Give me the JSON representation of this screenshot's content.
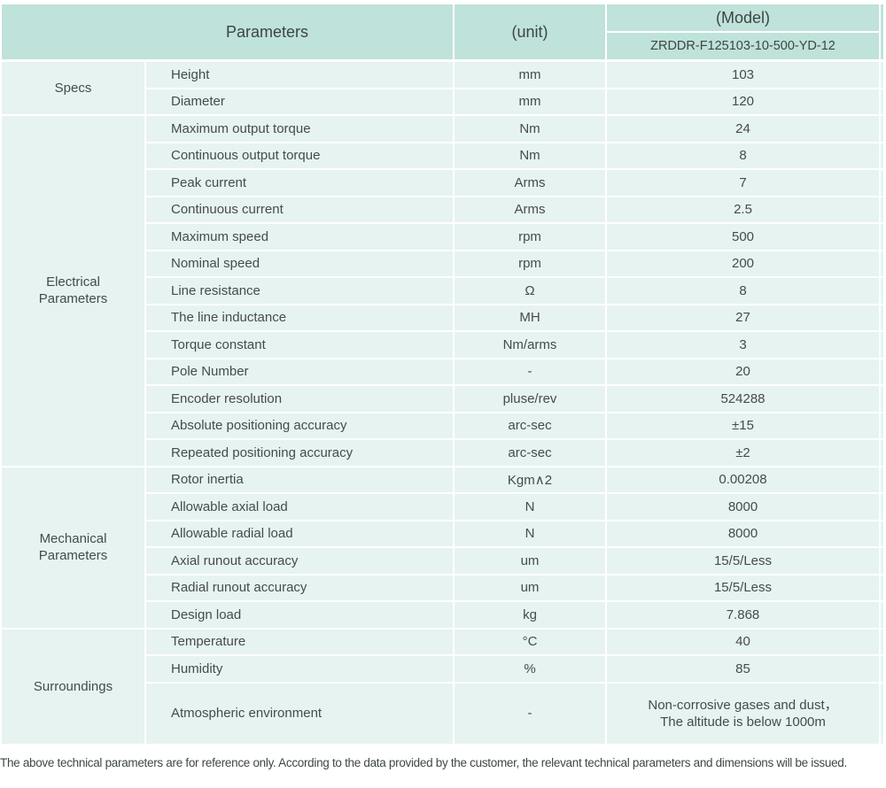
{
  "colors": {
    "header_bg": "#bfe2da",
    "row_bg": "#e6f3f1"
  },
  "header": {
    "parameters_label": "Parameters",
    "unit_label": "(unit)",
    "model_label": "(Model)",
    "model_value": "ZRDDR-F125103-10-500-YD-12"
  },
  "groups": [
    {
      "name": "Specs",
      "rows": [
        {
          "param": "Height",
          "unit": "mm",
          "value": "103"
        },
        {
          "param": "Diameter",
          "unit": "mm",
          "value": "120"
        }
      ]
    },
    {
      "name": "Electrical Parameters",
      "rows": [
        {
          "param": "Maximum output torque",
          "unit": "Nm",
          "value": "24"
        },
        {
          "param": "Continuous output torque",
          "unit": "Nm",
          "value": "8"
        },
        {
          "param": "Peak current",
          "unit": "Arms",
          "value": "7"
        },
        {
          "param": "Continuous current",
          "unit": "Arms",
          "value": "2.5"
        },
        {
          "param": "Maximum speed",
          "unit": "rpm",
          "value": "500"
        },
        {
          "param": "Nominal speed",
          "unit": "rpm",
          "value": "200"
        },
        {
          "param": "Line resistance",
          "unit": "Ω",
          "value": "8"
        },
        {
          "param": "The line inductance",
          "unit": "MH",
          "value": "27"
        },
        {
          "param": "Torque constant",
          "unit": "Nm/arms",
          "value": "3"
        },
        {
          "param": "Pole Number",
          "unit": "-",
          "value": "20"
        },
        {
          "param": "Encoder resolution",
          "unit": "pluse/rev",
          "value": "524288"
        },
        {
          "param": "Absolute positioning accuracy",
          "unit": "arc-sec",
          "value": "±15"
        },
        {
          "param": "Repeated positioning accuracy",
          "unit": "arc-sec",
          "value": "±2"
        }
      ]
    },
    {
      "name": "Mechanical Parameters",
      "rows": [
        {
          "param": "Rotor inertia",
          "unit": "Kgm∧2",
          "value": "0.00208"
        },
        {
          "param": "Allowable axial load",
          "unit": "N",
          "value": "8000"
        },
        {
          "param": "Allowable radial load",
          "unit": "N",
          "value": "8000"
        },
        {
          "param": "Axial runout accuracy",
          "unit": "um",
          "value": "15/5/Less"
        },
        {
          "param": "Radial runout accuracy",
          "unit": "um",
          "value": "15/5/Less"
        },
        {
          "param": "Design load",
          "unit": "kg",
          "value": "7.868"
        }
      ]
    },
    {
      "name": "Surroundings",
      "rows": [
        {
          "param": "Temperature",
          "unit": "°C",
          "value": "40"
        },
        {
          "param": "Humidity",
          "unit": "%",
          "value": "85"
        },
        {
          "param": "Atmospheric environment",
          "unit": "-",
          "value": "Non-corrosive gases and dust，\nThe altitude is below 1000m",
          "tall": true
        }
      ]
    }
  ],
  "footnote": "The above technical parameters are for reference only. According to the data provided by the customer, the relevant technical parameters and dimensions will be issued."
}
